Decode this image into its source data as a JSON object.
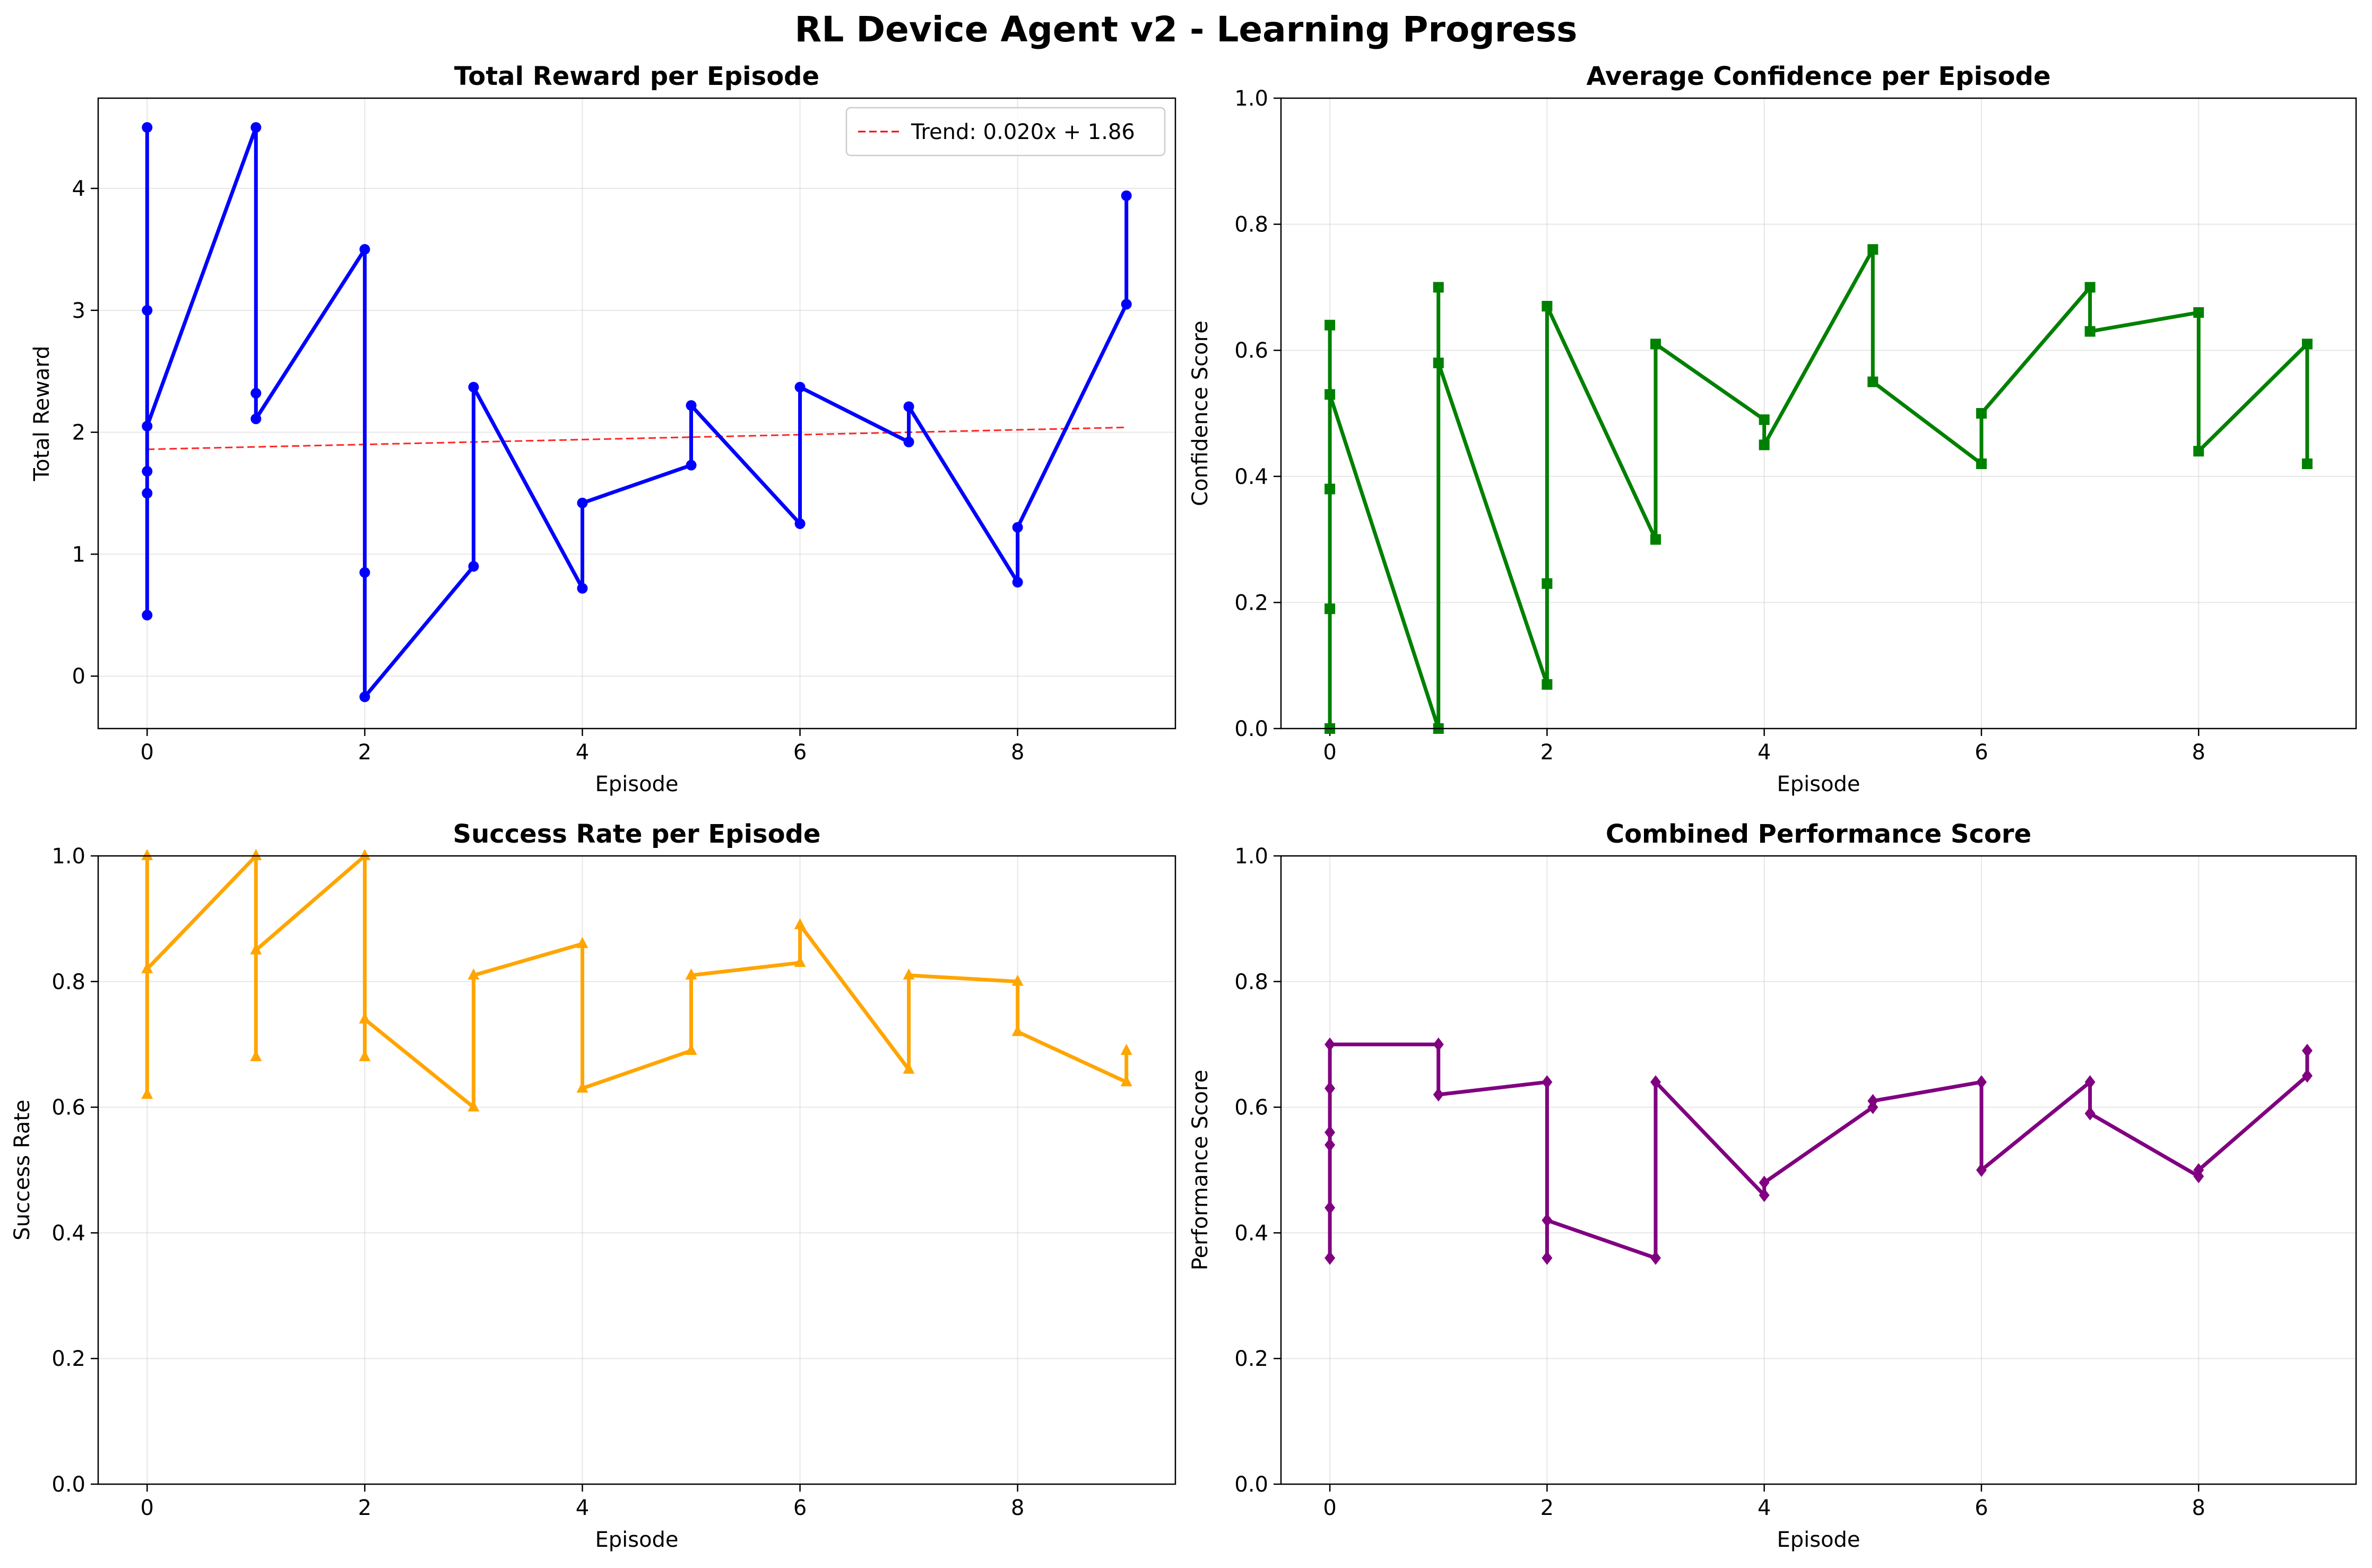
{
  "figure_title": "RL Device Agent v2 - Learning Progress",
  "chart_data": [
    {
      "type": "line",
      "title": "Total Reward per Episode",
      "xlabel": "Episode",
      "ylabel": "Total Reward",
      "xlim": [
        -0.45,
        9.45
      ],
      "ylim": [
        -0.43,
        4.74
      ],
      "xticks": [
        0,
        2,
        4,
        6,
        8
      ],
      "yticks": [
        0,
        1,
        2,
        3,
        4
      ],
      "grid": true,
      "color": "#0000ff",
      "marker": "circle",
      "series": [
        {
          "x": [
            0,
            0,
            0,
            0,
            0,
            0,
            1,
            1,
            1,
            2,
            2,
            2,
            3,
            3,
            4,
            4,
            5,
            5,
            6,
            6,
            7,
            7,
            8,
            8,
            9,
            9
          ],
          "y": [
            0.5,
            1.5,
            1.68,
            3.0,
            4.5,
            2.05,
            4.5,
            2.32,
            2.11,
            3.5,
            0.85,
            -0.17,
            0.9,
            2.37,
            0.72,
            1.42,
            1.73,
            2.22,
            1.25,
            2.37,
            1.92,
            2.21,
            0.77,
            1.22,
            3.05,
            3.94
          ]
        }
      ],
      "trend": {
        "label": "Trend: 0.020x + 1.86",
        "slope": 0.02,
        "intercept": 1.86,
        "x_range": [
          0,
          9
        ],
        "color": "#ff0000"
      },
      "legend_position": "top-right"
    },
    {
      "type": "line",
      "title": "Average Confidence per Episode",
      "xlabel": "Episode",
      "ylabel": "Confidence Score",
      "xlim": [
        -0.45,
        9.45
      ],
      "ylim": [
        0,
        1
      ],
      "xticks": [
        0,
        2,
        4,
        6,
        8
      ],
      "yticks": [
        0.0,
        0.2,
        0.4,
        0.6,
        0.8,
        1.0
      ],
      "grid": true,
      "color": "#008000",
      "marker": "square",
      "series": [
        {
          "x": [
            0,
            0,
            0,
            0,
            0,
            1,
            1,
            1,
            2,
            2,
            2,
            3,
            3,
            4,
            4,
            5,
            5,
            6,
            6,
            7,
            7,
            8,
            8,
            9,
            9
          ],
          "y": [
            0.0,
            0.19,
            0.38,
            0.64,
            0.53,
            0.0,
            0.7,
            0.58,
            0.07,
            0.23,
            0.67,
            0.3,
            0.61,
            0.49,
            0.45,
            0.76,
            0.55,
            0.42,
            0.5,
            0.7,
            0.63,
            0.66,
            0.44,
            0.61,
            0.42
          ]
        }
      ]
    },
    {
      "type": "line",
      "title": "Success Rate per Episode",
      "xlabel": "Episode",
      "ylabel": "Success Rate",
      "xlim": [
        -0.45,
        9.45
      ],
      "ylim": [
        0,
        1
      ],
      "xticks": [
        0,
        2,
        4,
        6,
        8
      ],
      "yticks": [
        0.0,
        0.2,
        0.4,
        0.6,
        0.8,
        1.0
      ],
      "grid": true,
      "color": "#ffa500",
      "marker": "triangle",
      "series": [
        {
          "x": [
            0,
            0,
            0,
            1,
            1,
            1,
            2,
            2,
            2,
            3,
            3,
            4,
            4,
            5,
            5,
            6,
            6,
            7,
            7,
            8,
            8,
            9,
            9
          ],
          "y": [
            0.62,
            1.0,
            0.82,
            1.0,
            0.68,
            0.85,
            1.0,
            0.68,
            0.74,
            0.6,
            0.81,
            0.86,
            0.63,
            0.69,
            0.81,
            0.83,
            0.89,
            0.66,
            0.81,
            0.8,
            0.72,
            0.64,
            0.69
          ]
        }
      ]
    },
    {
      "type": "line",
      "title": "Combined Performance Score",
      "xlabel": "Episode",
      "ylabel": "Performance Score",
      "xlim": [
        -0.45,
        9.45
      ],
      "ylim": [
        0,
        1
      ],
      "xticks": [
        0,
        2,
        4,
        6,
        8
      ],
      "yticks": [
        0.0,
        0.2,
        0.4,
        0.6,
        0.8,
        1.0
      ],
      "grid": true,
      "color": "#800080",
      "marker": "diamond",
      "series": [
        {
          "x": [
            0,
            0,
            0,
            0,
            0,
            0,
            1,
            1,
            2,
            2,
            2,
            3,
            3,
            4,
            4,
            5,
            5,
            6,
            6,
            7,
            7,
            8,
            8,
            9,
            9
          ],
          "y": [
            0.36,
            0.44,
            0.54,
            0.56,
            0.63,
            0.7,
            0.7,
            0.62,
            0.64,
            0.36,
            0.42,
            0.36,
            0.64,
            0.46,
            0.48,
            0.6,
            0.61,
            0.64,
            0.5,
            0.64,
            0.59,
            0.49,
            0.5,
            0.65,
            0.69
          ]
        }
      ]
    }
  ]
}
